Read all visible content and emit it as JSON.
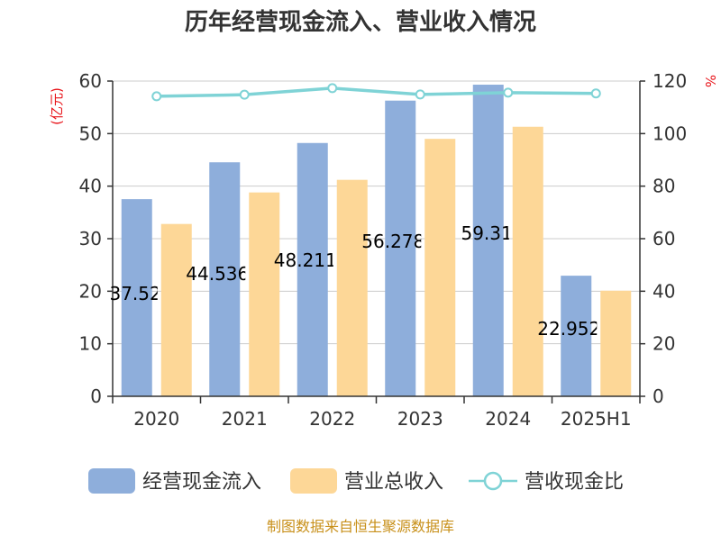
{
  "chart_data": {
    "type": "bar",
    "title": "历年经营现金流入、营业收入情况",
    "categories": [
      "2020",
      "2021",
      "2022",
      "2023",
      "2024",
      "2025H1"
    ],
    "series": [
      {
        "name": "经营现金流入",
        "kind": "bar",
        "axis": "left",
        "color": "#8eaedb",
        "values": [
          37.52,
          44.536,
          48.211,
          56.278,
          59.31,
          22.952
        ],
        "labels": [
          "37.52",
          "44.536",
          "48.211",
          "56.278",
          "59.31",
          "22.952"
        ]
      },
      {
        "name": "营业总收入",
        "kind": "bar",
        "axis": "left",
        "color": "#fdd797",
        "values": [
          32.8,
          38.8,
          41.2,
          49.0,
          51.3,
          20.1
        ]
      },
      {
        "name": "营收现金比",
        "kind": "line",
        "axis": "right",
        "color": "#7fd3d6",
        "values": [
          114.2,
          114.8,
          117.3,
          114.9,
          115.6,
          115.3
        ]
      }
    ],
    "y_left": {
      "unit": "(亿元)",
      "min": 0,
      "max": 60,
      "ticks": [
        "0",
        "10",
        "20",
        "30",
        "40",
        "50",
        "60"
      ]
    },
    "y_right": {
      "unit": "%",
      "min": 0,
      "max": 120,
      "ticks": [
        "0",
        "20",
        "40",
        "60",
        "80",
        "100",
        "120"
      ]
    },
    "grid": true,
    "legend_position": "bottom",
    "unit_color": "#e8141a"
  },
  "source": "制图数据来自恒生聚源数据库"
}
